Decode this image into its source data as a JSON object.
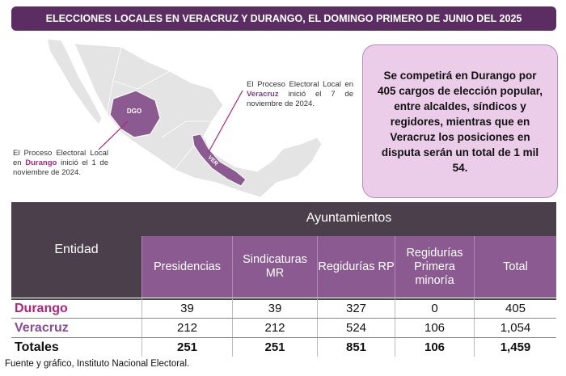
{
  "header": {
    "title": "ELECCIONES LOCALES EN VERACRUZ Y DURANGO, EL DOMINGO PRIMERO DE JUNIO DEL 2025"
  },
  "map": {
    "labels": [
      "DGO",
      "VER"
    ],
    "annotations": [
      {
        "before": "El Proceso Electoral Local en ",
        "state": "Veracruz",
        "after": " inició el 7 de noviembre de 2024."
      },
      {
        "before": "El Proceso Electoral Local en ",
        "state": "Durango",
        "after": " inició el 1 de noviembre de 2024."
      }
    ]
  },
  "callout": {
    "text": "Se competirá en Durango por 405 cargos de elección popular, entre alcaldes, síndicos y regidores, mientras que en Veracruz los posiciones en disputa serán un total de 1 mil 54."
  },
  "table": {
    "entity_header": "Entidad",
    "group_header": "Ayuntamientos",
    "columns": [
      "Presidencias",
      "Sindicaturas MR",
      "Regidurías RP",
      "Regidurías Primera minoría",
      "Total"
    ],
    "rows": [
      {
        "entity": "Durango",
        "cells": [
          "39",
          "39",
          "327",
          "0",
          "405"
        ]
      },
      {
        "entity": "Veracruz",
        "cells": [
          "212",
          "212",
          "524",
          "106",
          "1,054"
        ]
      },
      {
        "entity": "Totales",
        "cells": [
          "251",
          "251",
          "851",
          "106",
          "1,459"
        ]
      }
    ]
  },
  "footer": {
    "source": "Fuente y gráfico, Instituto Nacional Electoral."
  }
}
